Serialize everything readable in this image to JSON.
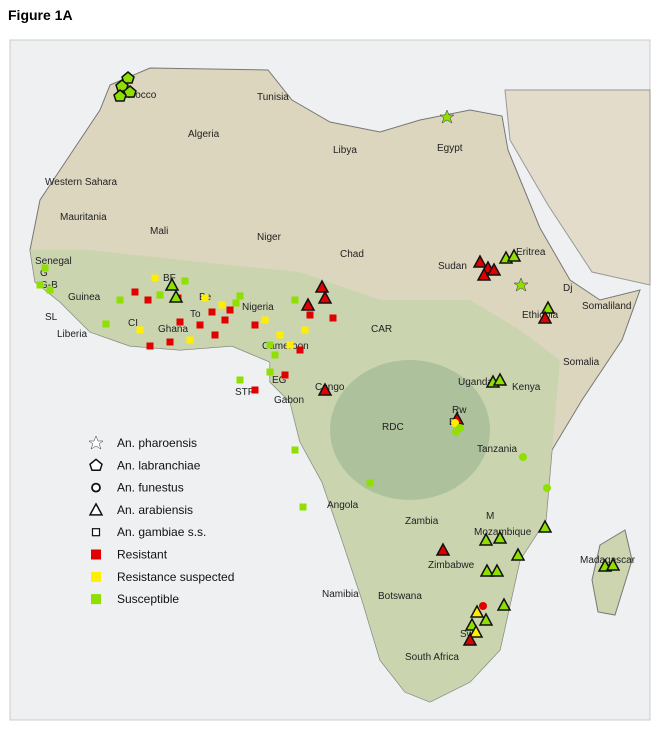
{
  "title": "Figure 1A",
  "map": {
    "labels": [
      "Morocco",
      "Tunisia",
      "Algeria",
      "Libya",
      "Egypt",
      "Western Sahara",
      "Mauritania",
      "Mali",
      "Niger",
      "Chad",
      "Sudan",
      "Eritrea",
      "Dj",
      "Senegal",
      "G",
      "G-B",
      "Guinea",
      "SL",
      "Liberia",
      "CI",
      "Ghana",
      "BF",
      "Be",
      "To",
      "Nigeria",
      "Cameroon",
      "EG",
      "STP",
      "Gabon",
      "Congo",
      "CAR",
      "Ethiopia",
      "Somaliland",
      "Somalia",
      "Uganda",
      "Kenya",
      "Rw",
      "Bu",
      "RDC",
      "Tanzania",
      "Angola",
      "Zambia",
      "M",
      "Mozambique",
      "Zimbabwe",
      "Madagascar",
      "Namibia",
      "Botswana",
      "Sw",
      "South Africa"
    ]
  },
  "legend": {
    "items": [
      "An. pharoensis",
      "An. labranchiae",
      "An. funestus",
      "An. arabiensis",
      "An. gambiae s.s.",
      "Resistant",
      "Resistance suspected",
      "Susceptible"
    ]
  }
}
